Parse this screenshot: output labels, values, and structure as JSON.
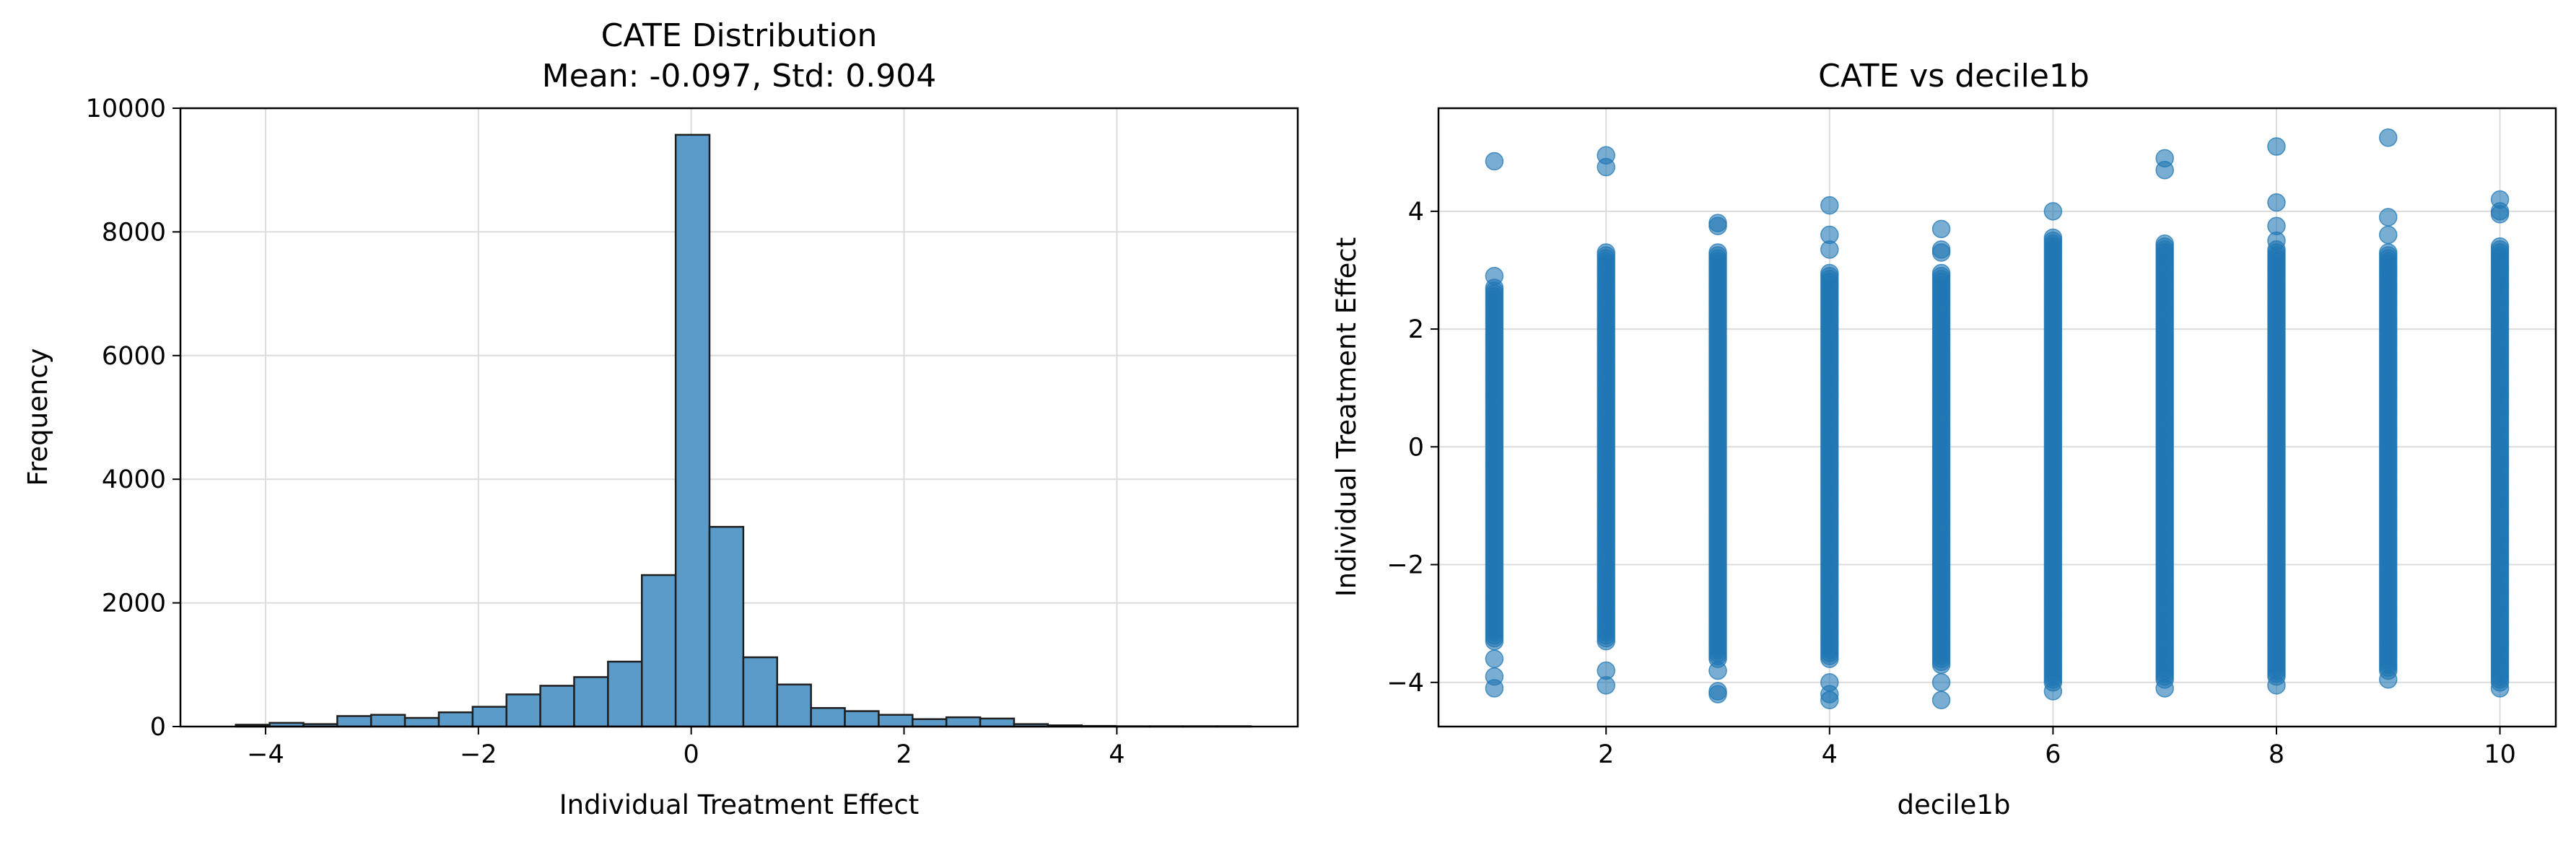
{
  "chart_data": [
    {
      "type": "bar",
      "title": "CATE Distribution",
      "subtitle": "Mean: -0.097, Std: 0.904",
      "xlabel": "Individual Treatment Effect",
      "ylabel": "Frequency",
      "xlim": [
        -4.8,
        5.7
      ],
      "ylim": [
        0,
        10000
      ],
      "xticks": [
        -4,
        -2,
        0,
        2,
        4
      ],
      "yticks": [
        0,
        2000,
        4000,
        6000,
        8000,
        10000
      ],
      "xtick_labels": [
        "−4",
        "−2",
        "0",
        "2",
        "4"
      ],
      "ytick_labels": [
        "0",
        "2000",
        "4000",
        "6000",
        "8000",
        "10000"
      ],
      "bin_start": -4.28,
      "bin_width": 0.318,
      "values": [
        30,
        60,
        40,
        170,
        190,
        140,
        230,
        320,
        520,
        660,
        800,
        1050,
        2450,
        9570,
        3230,
        1120,
        680,
        300,
        250,
        190,
        120,
        150,
        130,
        40,
        20,
        10,
        5,
        5,
        5,
        5
      ],
      "grid": true,
      "bar_color": "#5b9bc9",
      "edge_color": "#1f1f1f"
    },
    {
      "type": "scatter",
      "title": "CATE vs decile1b",
      "xlabel": "decile1b",
      "ylabel": "Individual Treatment Effect",
      "xlim": [
        0.5,
        10.5
      ],
      "ylim": [
        -4.75,
        5.75
      ],
      "xticks": [
        2,
        4,
        6,
        8,
        10
      ],
      "yticks": [
        -4,
        -2,
        0,
        2,
        4
      ],
      "xtick_labels": [
        "2",
        "4",
        "6",
        "8",
        "10"
      ],
      "ytick_labels": [
        "−4",
        "−2",
        "0",
        "2",
        "4"
      ],
      "grid": true,
      "point_color": "#1f77b4",
      "columns": [
        {
          "x": 1,
          "min": -3.3,
          "max": 2.7,
          "outliers": [
            4.85,
            2.9,
            -3.6,
            -3.9,
            -4.1
          ]
        },
        {
          "x": 2,
          "min": -3.3,
          "max": 3.3,
          "outliers": [
            4.95,
            4.75,
            -3.8,
            -4.05
          ]
        },
        {
          "x": 3,
          "min": -3.6,
          "max": 3.3,
          "outliers": [
            3.8,
            3.75,
            -3.8,
            -4.15,
            -4.2
          ]
        },
        {
          "x": 4,
          "min": -3.6,
          "max": 2.95,
          "outliers": [
            4.1,
            3.6,
            3.35,
            -4.0,
            -4.2,
            -4.3
          ]
        },
        {
          "x": 5,
          "min": -3.7,
          "max": 2.95,
          "outliers": [
            3.7,
            3.35,
            3.3,
            -4.0,
            -4.3
          ]
        },
        {
          "x": 6,
          "min": -4.0,
          "max": 3.55,
          "outliers": [
            4.0,
            -4.15
          ]
        },
        {
          "x": 7,
          "min": -3.95,
          "max": 3.45,
          "outliers": [
            4.9,
            4.7,
            -4.1
          ]
        },
        {
          "x": 8,
          "min": -3.9,
          "max": 3.35,
          "outliers": [
            5.1,
            4.15,
            3.75,
            3.5,
            -4.05
          ]
        },
        {
          "x": 9,
          "min": -3.8,
          "max": 3.3,
          "outliers": [
            5.25,
            3.9,
            3.6,
            -3.95
          ]
        },
        {
          "x": 10,
          "min": -4.0,
          "max": 3.4,
          "outliers": [
            4.2,
            4.0,
            3.95,
            -4.1
          ]
        }
      ]
    }
  ]
}
